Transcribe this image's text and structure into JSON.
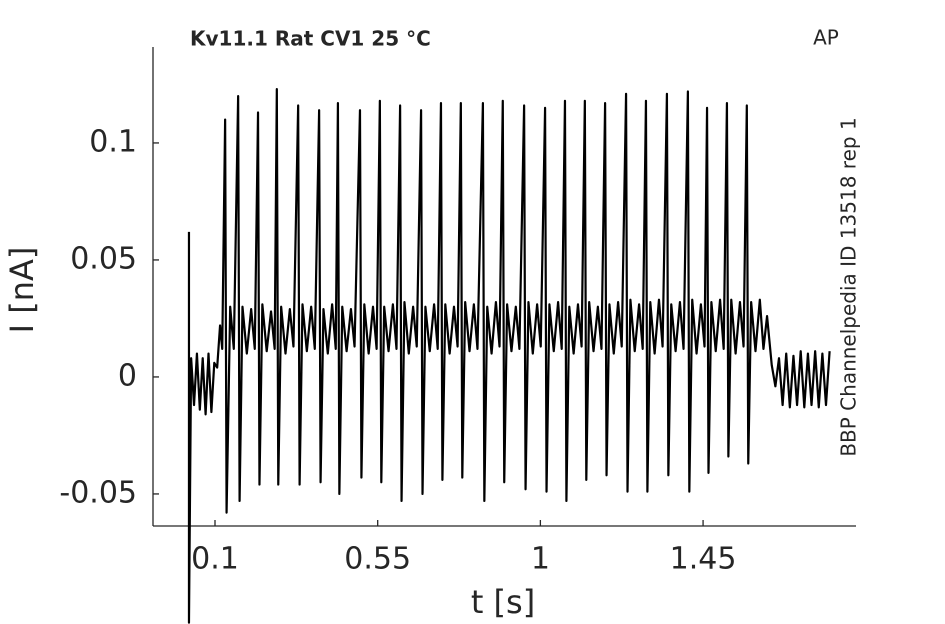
{
  "chart_data": {
    "type": "line",
    "title": "Kv11.1  Rat  CV1  25 °C",
    "annotation": "AP",
    "side_label": "BBP Channelpedia ID 13518 rep 1",
    "xlabel": "t [s]",
    "ylabel": "I [nA]",
    "xlim": [
      -0.0715,
      1.873
    ],
    "ylim": [
      -0.0637,
      0.141
    ],
    "xticks": [
      0.1,
      0.55,
      1,
      1.45
    ],
    "yticks": [
      -0.05,
      0,
      0.05,
      0.1
    ],
    "series": [
      {
        "color": "#000000",
        "x": [
          0.028,
          0.028,
          0.034,
          0.042,
          0.05,
          0.058,
          0.066,
          0.074,
          0.082,
          0.09,
          0.098,
          0.106,
          0.114,
          0.12,
          0.128,
          0.132,
          0.142,
          0.152,
          0.164,
          0.168,
          0.176,
          0.188,
          0.2,
          0.21,
          0.219,
          0.223,
          0.231,
          0.243,
          0.255,
          0.265,
          0.271,
          0.275,
          0.283,
          0.295,
          0.307,
          0.317,
          0.33,
          0.334,
          0.342,
          0.354,
          0.366,
          0.376,
          0.388,
          0.392,
          0.4,
          0.412,
          0.424,
          0.434,
          0.44,
          0.444,
          0.452,
          0.464,
          0.476,
          0.486,
          0.501,
          0.505,
          0.513,
          0.525,
          0.537,
          0.547,
          0.556,
          0.56,
          0.568,
          0.58,
          0.592,
          0.602,
          0.612,
          0.616,
          0.624,
          0.636,
          0.648,
          0.658,
          0.67,
          0.674,
          0.682,
          0.694,
          0.706,
          0.716,
          0.725,
          0.729,
          0.737,
          0.749,
          0.761,
          0.771,
          0.78,
          0.784,
          0.792,
          0.804,
          0.816,
          0.826,
          0.841,
          0.845,
          0.853,
          0.865,
          0.877,
          0.887,
          0.896,
          0.9,
          0.908,
          0.92,
          0.932,
          0.942,
          0.955,
          0.959,
          0.967,
          0.979,
          0.991,
          1.001,
          1.013,
          1.017,
          1.025,
          1.037,
          1.049,
          1.059,
          1.068,
          1.072,
          1.08,
          1.092,
          1.104,
          1.114,
          1.123,
          1.127,
          1.135,
          1.147,
          1.159,
          1.169,
          1.179,
          1.183,
          1.191,
          1.203,
          1.215,
          1.225,
          1.237,
          1.241,
          1.249,
          1.261,
          1.273,
          1.283,
          1.292,
          1.296,
          1.304,
          1.316,
          1.328,
          1.338,
          1.35,
          1.354,
          1.362,
          1.374,
          1.386,
          1.396,
          1.408,
          1.412,
          1.42,
          1.432,
          1.444,
          1.454,
          1.461,
          1.465,
          1.473,
          1.485,
          1.497,
          1.507,
          1.516,
          1.52,
          1.528,
          1.54,
          1.552,
          1.562,
          1.571,
          1.575,
          1.583,
          1.595,
          1.607,
          1.617,
          1.627,
          1.64,
          1.65,
          1.66,
          1.67,
          1.68,
          1.69,
          1.7,
          1.71,
          1.72,
          1.73,
          1.74,
          1.75,
          1.76,
          1.77,
          1.78,
          1.79,
          1.8
        ],
        "values": [
          0.062,
          -0.105,
          0.008,
          -0.012,
          0.01,
          -0.014,
          0.008,
          -0.016,
          0.01,
          -0.015,
          0.006,
          0.004,
          0.022,
          0.012,
          0.11,
          -0.058,
          0.03,
          0.012,
          0.12,
          -0.053,
          0.03,
          0.01,
          0.029,
          0.012,
          0.113,
          -0.046,
          0.031,
          0.011,
          0.028,
          0.012,
          0.123,
          -0.046,
          0.03,
          0.01,
          0.029,
          0.013,
          0.116,
          -0.046,
          0.031,
          0.011,
          0.03,
          0.012,
          0.114,
          -0.045,
          0.029,
          0.01,
          0.031,
          0.012,
          0.117,
          -0.05,
          0.03,
          0.011,
          0.029,
          0.013,
          0.114,
          -0.043,
          0.031,
          0.01,
          0.03,
          0.012,
          0.118,
          -0.045,
          0.03,
          0.011,
          0.031,
          0.012,
          0.116,
          -0.053,
          0.032,
          0.01,
          0.03,
          0.013,
          0.114,
          -0.05,
          0.03,
          0.011,
          0.031,
          0.012,
          0.117,
          -0.044,
          0.031,
          0.01,
          0.03,
          0.013,
          0.117,
          -0.043,
          0.032,
          0.011,
          0.031,
          0.012,
          0.117,
          -0.053,
          0.03,
          0.01,
          0.032,
          0.013,
          0.118,
          -0.045,
          0.031,
          0.011,
          0.03,
          0.012,
          0.116,
          -0.048,
          0.032,
          0.01,
          0.031,
          0.013,
          0.115,
          -0.049,
          0.031,
          0.011,
          0.032,
          0.012,
          0.118,
          -0.053,
          0.03,
          0.01,
          0.031,
          0.013,
          0.118,
          -0.044,
          0.032,
          0.011,
          0.03,
          0.012,
          0.117,
          -0.042,
          0.031,
          0.01,
          0.032,
          0.013,
          0.121,
          -0.049,
          0.033,
          0.011,
          0.031,
          0.012,
          0.118,
          -0.049,
          0.032,
          0.01,
          0.033,
          0.013,
          0.121,
          -0.042,
          0.031,
          0.011,
          0.032,
          0.012,
          0.122,
          -0.049,
          0.033,
          0.01,
          0.031,
          0.013,
          0.115,
          -0.041,
          0.032,
          0.011,
          0.033,
          0.012,
          0.117,
          -0.034,
          0.033,
          0.01,
          0.032,
          0.013,
          0.116,
          -0.037,
          0.032,
          0.011,
          0.033,
          0.012,
          0.026,
          0.005,
          -0.004,
          0.008,
          -0.012,
          0.01,
          -0.013,
          0.009,
          -0.012,
          0.011,
          -0.013,
          0.01,
          -0.012,
          0.011,
          -0.013,
          0.01,
          -0.012,
          0.011
        ]
      }
    ]
  }
}
